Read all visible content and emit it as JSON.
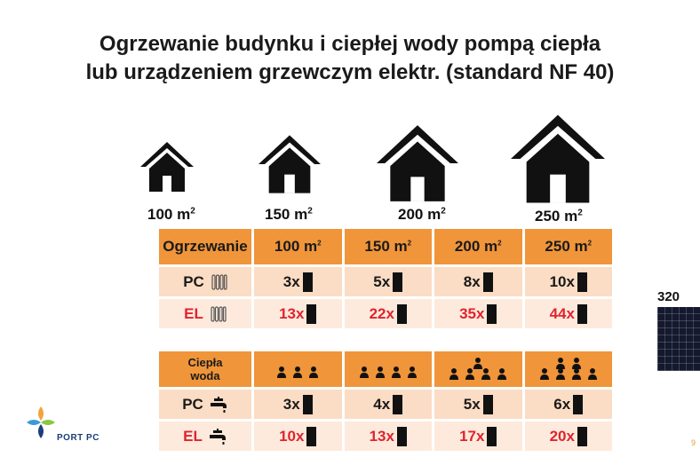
{
  "title": {
    "line1": "Ogrzewanie budynku i ciepłej wody pompą ciepła",
    "line2": "lub urządzeniem grzewczym elektr. (standard NF 40)"
  },
  "houses": [
    {
      "label": "100 m",
      "sup": "2"
    },
    {
      "label": "150 m",
      "sup": "2"
    },
    {
      "label": "200 m",
      "sup": "2"
    },
    {
      "label": "250 m",
      "sup": "2"
    }
  ],
  "heating_table": {
    "header": "Ogrzewanie",
    "columns": [
      {
        "label": "100 m",
        "sup": "2"
      },
      {
        "label": "150 m",
        "sup": "2"
      },
      {
        "label": "200 m",
        "sup": "2"
      },
      {
        "label": "250 m",
        "sup": "2"
      }
    ],
    "rows": [
      {
        "label": "PC",
        "type": "pc",
        "icon": "radiator-icon",
        "values": [
          "3x",
          "5x",
          "8x",
          "10x"
        ]
      },
      {
        "label": "EL",
        "type": "el",
        "icon": "radiator-icon",
        "values": [
          "13x",
          "22x",
          "35x",
          "44x"
        ]
      }
    ]
  },
  "water_table": {
    "header_line1": "Ciepła",
    "header_line2": "woda",
    "people_counts": [
      3,
      4,
      5,
      6
    ],
    "rows": [
      {
        "label": "PC",
        "type": "pc",
        "icon": "tap-icon",
        "values": [
          "3x",
          "4x",
          "5x",
          "6x"
        ]
      },
      {
        "label": "EL",
        "type": "el",
        "icon": "tap-icon",
        "values": [
          "10x",
          "13x",
          "17x",
          "20x"
        ]
      }
    ]
  },
  "panel": {
    "label": "320",
    "icon": "solar-panel-icon"
  },
  "logo": {
    "text": "PORT PC",
    "icon": "port-pc-logo-icon"
  },
  "page_number": "9",
  "colors": {
    "header_orange": "#f0953a",
    "row_light": "#fbdcc4",
    "el_red": "#e1232f"
  }
}
